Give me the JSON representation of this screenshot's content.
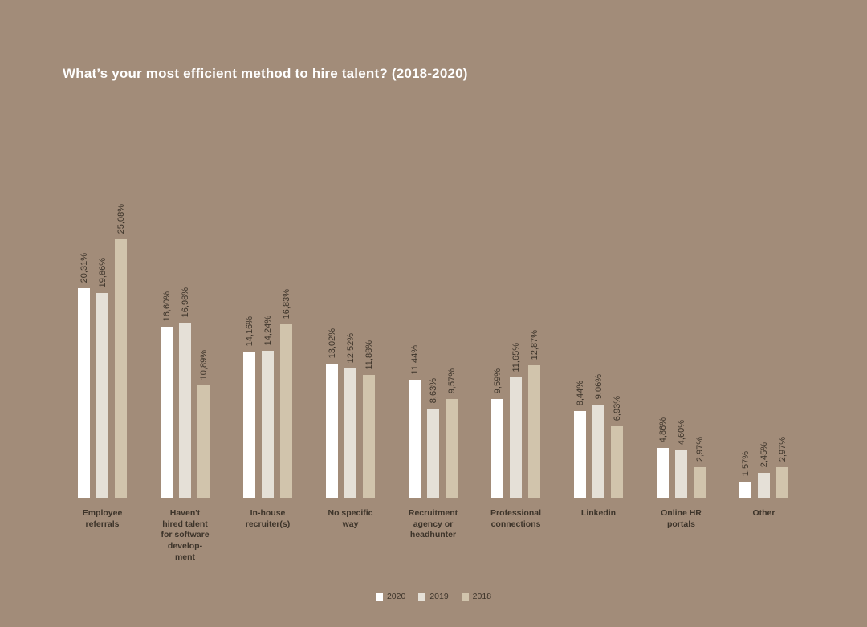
{
  "page": {
    "background": "#a28c79",
    "text_dark": "#3d342a",
    "title_color": "#ffffff"
  },
  "title": "What’s your most efficient method to hire talent? (2018-2020)",
  "chart_data": {
    "type": "bar",
    "title": "What’s your most efficient method to hire talent? (2018-2020)",
    "categories": [
      "Employee referrals",
      "Haven't hired talent for software development",
      "In-house recruiter(s)",
      "No specific way",
      "Recruitment agency or headhunter",
      "Professional connections",
      "Linkedin",
      "Online HR portals",
      "Other"
    ],
    "category_display": [
      "Employee\nreferrals",
      "Haven't\nhired talent\nfor software\ndevelop-\nment",
      "In-house\nrecruiter(s)",
      "No specific\nway",
      "Recruitment\nagency or\nheadhunter",
      "Professional\nconnections",
      "Linkedin",
      "Online HR\nportals",
      "Other"
    ],
    "series": [
      {
        "name": "2020",
        "color": "#ffffff",
        "values": [
          20.31,
          16.6,
          14.16,
          13.02,
          11.44,
          9.59,
          8.44,
          4.86,
          1.57
        ],
        "labels": [
          "20,31%",
          "16,60%",
          "14,16%",
          "13,02%",
          "11,44%",
          "9,59%",
          "8,44%",
          "4,86%",
          "1,57%"
        ]
      },
      {
        "name": "2019",
        "color": "#e5e0d7",
        "values": [
          19.86,
          16.98,
          14.24,
          12.52,
          8.63,
          11.65,
          9.06,
          4.6,
          2.45
        ],
        "labels": [
          "19,86%",
          "16,98%",
          "14,24%",
          "12,52%",
          "8,63%",
          "11,65%",
          "9,06%",
          "4,60%",
          "2,45%"
        ]
      },
      {
        "name": "2018",
        "color": "#d1c4ac",
        "values": [
          25.08,
          10.89,
          16.83,
          11.88,
          9.57,
          12.87,
          6.93,
          2.97,
          2.97
        ],
        "labels": [
          "25,08%",
          "10,89%",
          "16,83%",
          "11,88%",
          "9,57%",
          "12,87%",
          "6,93%",
          "2,97%",
          "2,97%"
        ]
      }
    ],
    "ylim": [
      0,
      25.08
    ],
    "value_format": "comma-decimal-percent",
    "grid": false,
    "axes_visible": false,
    "legend_position": "bottom-center"
  },
  "legend": {
    "items": [
      {
        "label": "2020",
        "color": "#ffffff"
      },
      {
        "label": "2019",
        "color": "#e5e0d7"
      },
      {
        "label": "2018",
        "color": "#d1c4ac"
      }
    ]
  }
}
